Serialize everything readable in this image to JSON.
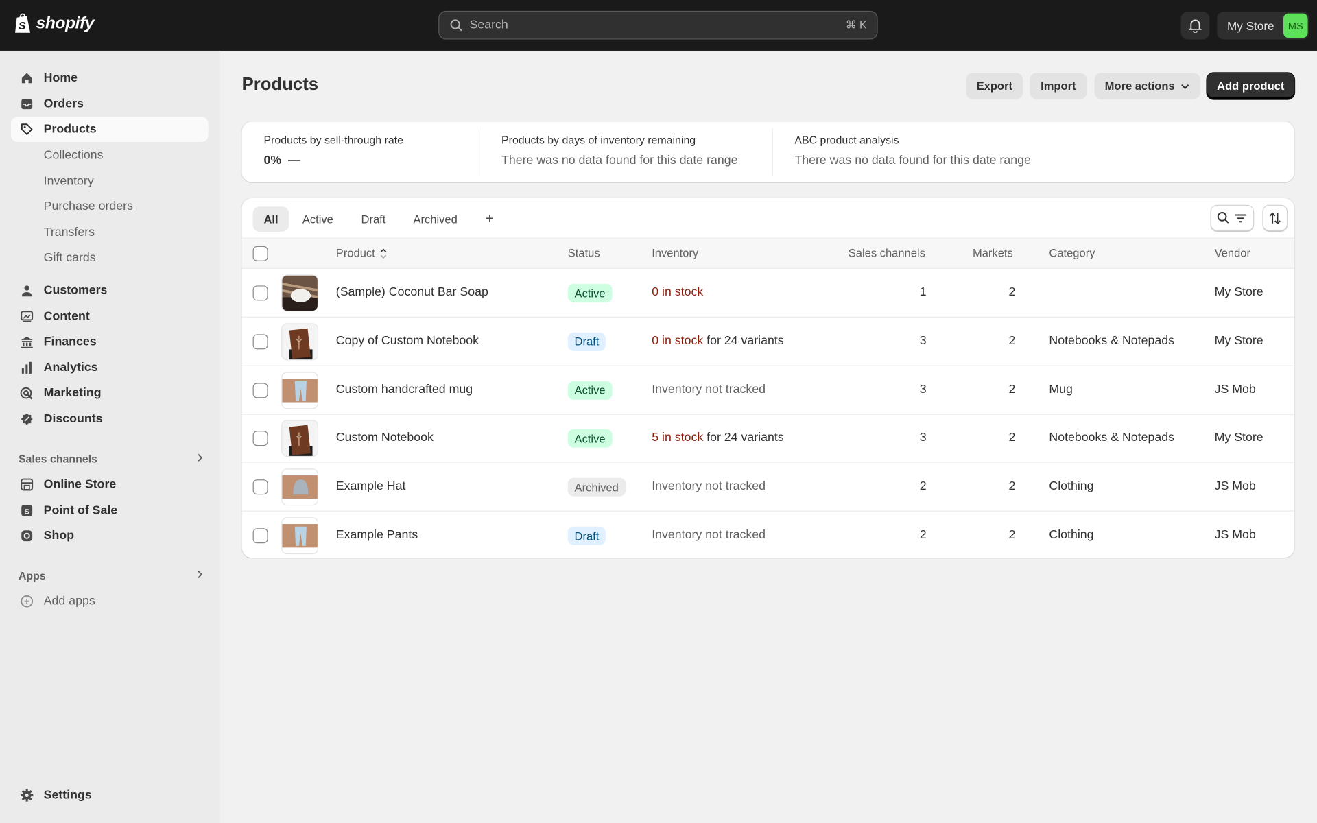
{
  "topbar": {
    "brand": "shopify",
    "search_placeholder": "Search",
    "search_shortcut": "⌘ K",
    "store_name": "My Store",
    "avatar_initials": "MS",
    "avatar_color": "#5ee05a"
  },
  "sidebar": {
    "main": [
      {
        "label": "Home",
        "icon": "home-icon"
      },
      {
        "label": "Orders",
        "icon": "inbox-icon"
      },
      {
        "label": "Products",
        "icon": "tag-icon",
        "active": true
      }
    ],
    "product_sub": [
      "Collections",
      "Inventory",
      "Purchase orders",
      "Transfers",
      "Gift cards"
    ],
    "more": [
      {
        "label": "Customers",
        "icon": "person-icon"
      },
      {
        "label": "Content",
        "icon": "content-icon"
      },
      {
        "label": "Finances",
        "icon": "bank-icon"
      },
      {
        "label": "Analytics",
        "icon": "bar-chart-icon"
      },
      {
        "label": "Marketing",
        "icon": "target-icon"
      },
      {
        "label": "Discounts",
        "icon": "discount-icon"
      }
    ],
    "sales_channels_heading": "Sales channels",
    "channels": [
      {
        "label": "Online Store",
        "icon": "store-icon"
      },
      {
        "label": "Point of Sale",
        "icon": "pos-icon"
      },
      {
        "label": "Shop",
        "icon": "shop-icon"
      }
    ],
    "apps_heading": "Apps",
    "add_apps": "Add apps",
    "settings": "Settings"
  },
  "page": {
    "title": "Products",
    "export": "Export",
    "import": "Import",
    "more_actions": "More actions",
    "add_product": "Add product"
  },
  "metrics": [
    {
      "title": "Products by sell-through rate",
      "value": "0%",
      "trend": "—"
    },
    {
      "title": "Products by days of inventory remaining",
      "value": "There was no data found for this date range"
    },
    {
      "title": "ABC product analysis",
      "value": "There was no data found for this date range"
    }
  ],
  "tabs": [
    "All",
    "Active",
    "Draft",
    "Archived",
    "+"
  ],
  "columns": [
    "Product",
    "Status",
    "Inventory",
    "Sales channels",
    "Markets",
    "Category",
    "Vendor"
  ],
  "rows": [
    {
      "product": "(Sample) Coconut Bar Soap",
      "status": "Active",
      "inv_stock": "0 in stock",
      "inv_rest": "",
      "channels": "1",
      "markets": "2",
      "category": "",
      "vendor": "My Store",
      "thumb": "soap"
    },
    {
      "product": "Copy of Custom Notebook",
      "status": "Draft",
      "inv_stock": "0 in stock",
      "inv_rest": " for 24 variants",
      "channels": "3",
      "markets": "2",
      "category": "Notebooks & Notepads",
      "vendor": "My Store",
      "thumb": "notebook"
    },
    {
      "product": "Custom handcrafted mug",
      "status": "Active",
      "inv_stock": "",
      "inv_rest": "Inventory not tracked",
      "channels": "3",
      "markets": "2",
      "category": "Mug",
      "vendor": "JS Mob",
      "thumb": "pants"
    },
    {
      "product": "Custom Notebook",
      "status": "Active",
      "inv_stock": "5 in stock",
      "inv_rest": " for 24 variants",
      "channels": "3",
      "markets": "2",
      "category": "Notebooks & Notepads",
      "vendor": "My Store",
      "thumb": "notebook"
    },
    {
      "product": "Example Hat",
      "status": "Archived",
      "inv_stock": "",
      "inv_rest": "Inventory not tracked",
      "channels": "2",
      "markets": "2",
      "category": "Clothing",
      "vendor": "JS Mob",
      "thumb": "hat"
    },
    {
      "product": "Example Pants",
      "status": "Draft",
      "inv_stock": "",
      "inv_rest": "Inventory not tracked",
      "channels": "2",
      "markets": "2",
      "category": "Clothing",
      "vendor": "JS Mob",
      "thumb": "pants"
    }
  ]
}
